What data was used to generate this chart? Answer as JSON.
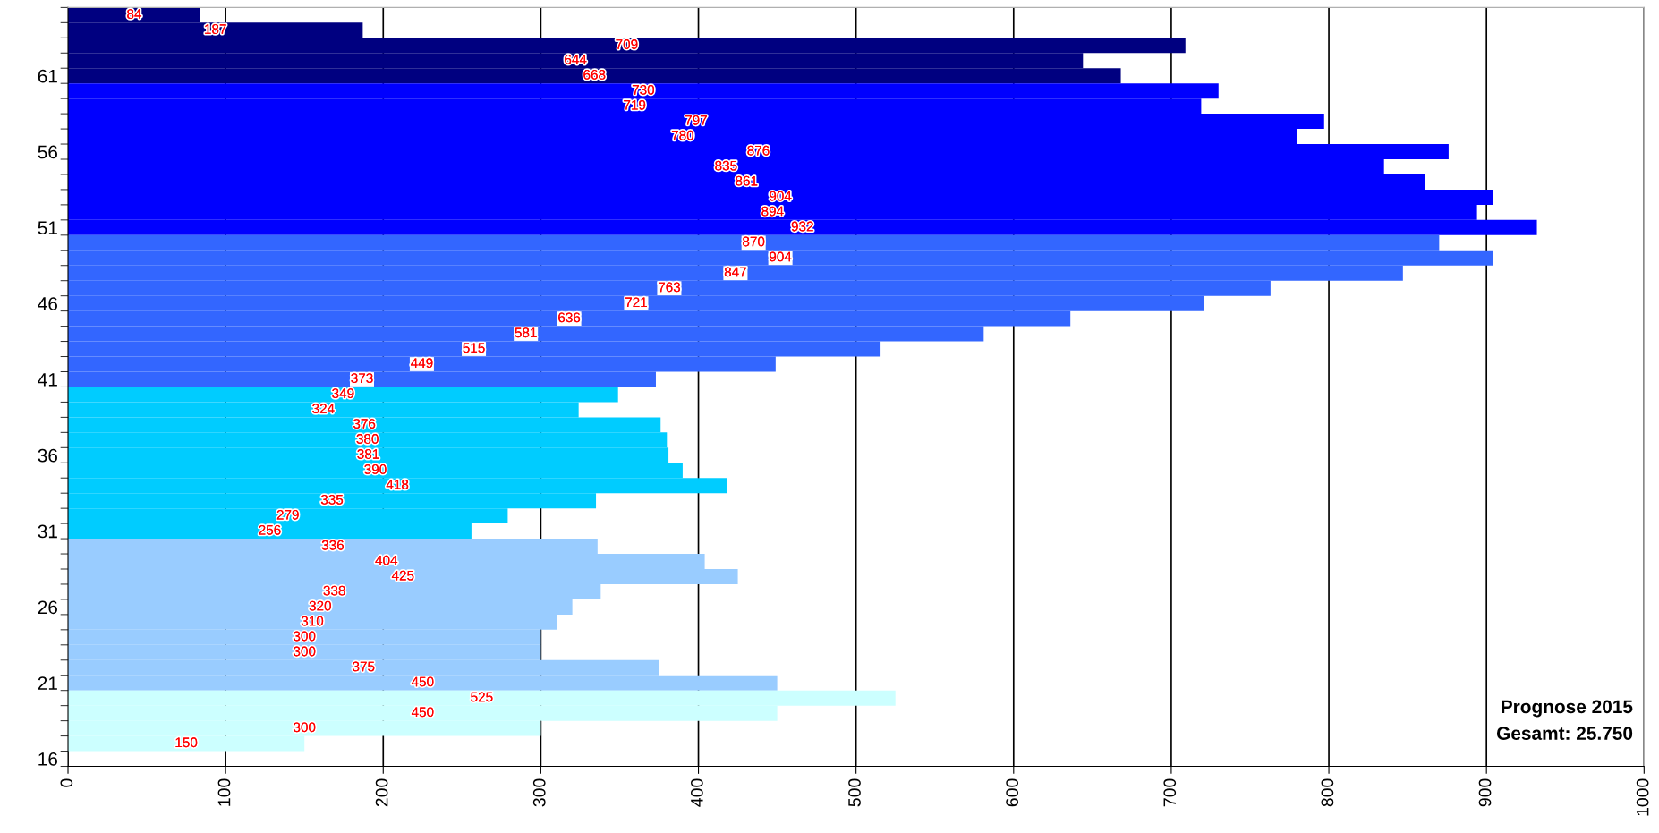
{
  "chart_data": {
    "type": "bar",
    "orientation": "horizontal",
    "categories": [
      null,
      null,
      null,
      null,
      "61",
      null,
      null,
      null,
      null,
      "56",
      null,
      null,
      null,
      null,
      "51",
      null,
      null,
      null,
      null,
      "46",
      null,
      null,
      null,
      null,
      "41",
      null,
      null,
      null,
      null,
      "36",
      null,
      null,
      null,
      null,
      "31",
      null,
      null,
      null,
      null,
      "26",
      null,
      null,
      null,
      null,
      "21",
      null,
      null,
      null,
      null,
      "16"
    ],
    "values": [
      84,
      187,
      709,
      644,
      668,
      730,
      719,
      797,
      780,
      876,
      835,
      861,
      904,
      894,
      932,
      870,
      904,
      847,
      763,
      721,
      636,
      581,
      515,
      449,
      373,
      349,
      324,
      376,
      380,
      381,
      390,
      418,
      335,
      279,
      256,
      336,
      404,
      425,
      338,
      320,
      310,
      300,
      300,
      375,
      450,
      525,
      450,
      300,
      150,
      null
    ],
    "colors": [
      "#000080",
      "#000080",
      "#000080",
      "#000080",
      "#000080",
      "#0000ff",
      "#0000ff",
      "#0000ff",
      "#0000ff",
      "#0000ff",
      "#0000ff",
      "#0000ff",
      "#0000ff",
      "#0000ff",
      "#0000ff",
      "#3366ff",
      "#3366ff",
      "#3366ff",
      "#3366ff",
      "#3366ff",
      "#3366ff",
      "#3366ff",
      "#3366ff",
      "#3366ff",
      "#3366ff",
      "#00ccff",
      "#00ccff",
      "#00ccff",
      "#00ccff",
      "#00ccff",
      "#00ccff",
      "#00ccff",
      "#00ccff",
      "#00ccff",
      "#00ccff",
      "#99ccff",
      "#99ccff",
      "#99ccff",
      "#99ccff",
      "#99ccff",
      "#99ccff",
      "#99ccff",
      "#99ccff",
      "#99ccff",
      "#99ccff",
      "#ccffff",
      "#ccffff",
      "#ccffff",
      "#ccffff",
      "#ccffff"
    ],
    "xlim": [
      0,
      1000
    ],
    "xticks": [
      0,
      100,
      200,
      300,
      400,
      500,
      600,
      700,
      800,
      900,
      1000
    ],
    "grid": "x",
    "data_labels": true,
    "annotations": [
      "Prognose 2015",
      "Gesamt: 25.750"
    ]
  }
}
